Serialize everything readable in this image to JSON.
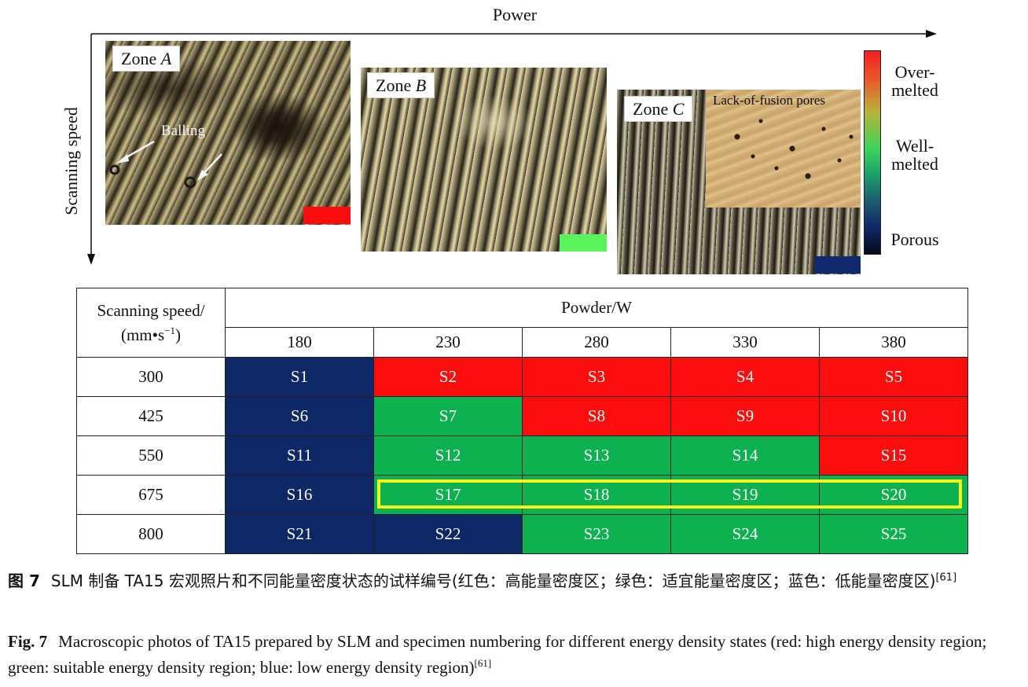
{
  "figure": {
    "x_axis_title": "Power",
    "y_axis_title": "Scanning speed",
    "zones": [
      {
        "prefix": "Zone ",
        "letter": "A",
        "swatch_color": "#fb0d0d"
      },
      {
        "prefix": "Zone ",
        "letter": "B",
        "swatch_color": "#5cf25c"
      },
      {
        "prefix": "Zone ",
        "letter": "C",
        "swatch_color": "#112a6b"
      }
    ],
    "annotation_balling": "Balling",
    "inset_label": "Lack-of-fusion pores",
    "colorbar": {
      "top_label": "Over-\nmelted",
      "middle_label": "Well-\nmelted",
      "bottom_label": "Porous"
    }
  },
  "table": {
    "speed_header_line1": "Scanning speed/",
    "speed_header_line2": "(mm•s",
    "speed_header_exp": "−1",
    "speed_header_close": ")",
    "power_header": "Powder/W",
    "powers": [
      "180",
      "230",
      "280",
      "330",
      "380"
    ],
    "colors": {
      "blue": "#0e2767",
      "red": "#fb0d0d",
      "green": "#0db14f",
      "highlight": "#f5f71c"
    },
    "rows": [
      {
        "speed": "300",
        "cells": [
          {
            "id": "S1",
            "state": "blue"
          },
          {
            "id": "S2",
            "state": "red"
          },
          {
            "id": "S3",
            "state": "red"
          },
          {
            "id": "S4",
            "state": "red"
          },
          {
            "id": "S5",
            "state": "red"
          }
        ]
      },
      {
        "speed": "425",
        "cells": [
          {
            "id": "S6",
            "state": "blue"
          },
          {
            "id": "S7",
            "state": "green"
          },
          {
            "id": "S8",
            "state": "red"
          },
          {
            "id": "S9",
            "state": "red"
          },
          {
            "id": "S10",
            "state": "red"
          }
        ]
      },
      {
        "speed": "550",
        "cells": [
          {
            "id": "S11",
            "state": "blue"
          },
          {
            "id": "S12",
            "state": "green"
          },
          {
            "id": "S13",
            "state": "green"
          },
          {
            "id": "S14",
            "state": "green"
          },
          {
            "id": "S15",
            "state": "red"
          }
        ]
      },
      {
        "speed": "675",
        "cells": [
          {
            "id": "S16",
            "state": "blue"
          },
          {
            "id": "S17",
            "state": "green"
          },
          {
            "id": "S18",
            "state": "green"
          },
          {
            "id": "S19",
            "state": "green"
          },
          {
            "id": "S20",
            "state": "green"
          }
        ]
      },
      {
        "speed": "800",
        "cells": [
          {
            "id": "S21",
            "state": "blue"
          },
          {
            "id": "S22",
            "state": "blue"
          },
          {
            "id": "S23",
            "state": "green"
          },
          {
            "id": "S24",
            "state": "green"
          },
          {
            "id": "S25",
            "state": "green"
          }
        ]
      }
    ]
  },
  "caption_cn": {
    "label": "图 7",
    "text": "SLM 制备 TA15 宏观照片和不同能量密度状态的试样编号(红色：高能量密度区；绿色：适宜能量密度区；蓝色：低能量密度区)",
    "ref": "[61]"
  },
  "caption_en": {
    "label": "Fig. 7",
    "text": "Macroscopic photos of TA15 prepared by SLM and specimen numbering for different energy density states (red: high energy density region; green: suitable energy density region; blue: low energy density region)",
    "ref": "[61]"
  }
}
